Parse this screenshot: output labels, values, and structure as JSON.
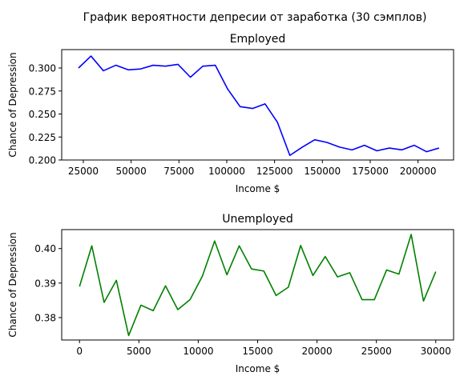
{
  "figure": {
    "suptitle": "График вероятности депресии от заработка (30 сэмплов)"
  },
  "colors": {
    "employed_line": "#0000ff",
    "unemployed_line": "#008000"
  },
  "chart_data": [
    {
      "type": "line",
      "title": "Employed",
      "xlabel": "Income $",
      "ylabel": "Chance of Depression",
      "xlim": [
        13700,
        218600
      ],
      "ylim": [
        0.2,
        0.32
      ],
      "xticks": [
        25000,
        50000,
        75000,
        100000,
        125000,
        150000,
        175000,
        200000
      ],
      "xtick_labels": [
        "25000",
        "50000",
        "75000",
        "100000",
        "125000",
        "150000",
        "175000",
        "200000"
      ],
      "yticks": [
        0.2,
        0.225,
        0.25,
        0.275,
        0.3
      ],
      "ytick_labels": [
        "0.200",
        "0.225",
        "0.250",
        "0.275",
        "0.300"
      ],
      "grid": false,
      "series": [
        {
          "color": "#0000ff",
          "x": [
            22500,
            29000,
            35500,
            42000,
            48500,
            55000,
            61500,
            68000,
            74500,
            81000,
            87500,
            94000,
            100500,
            107000,
            113500,
            120000,
            126500,
            133000,
            139500,
            146000,
            152500,
            159000,
            165500,
            172000,
            178500,
            185000,
            191500,
            198000,
            204500,
            211000
          ],
          "y": [
            0.3,
            0.313,
            0.297,
            0.303,
            0.298,
            0.299,
            0.303,
            0.302,
            0.304,
            0.29,
            0.302,
            0.303,
            0.277,
            0.258,
            0.256,
            0.261,
            0.241,
            0.205,
            0.214,
            0.222,
            0.219,
            0.214,
            0.211,
            0.216,
            0.21,
            0.213,
            0.211,
            0.216,
            0.209,
            0.213
          ]
        }
      ]
    },
    {
      "type": "line",
      "title": "Unemployed",
      "xlabel": "Income $",
      "ylabel": "Chance of Depression",
      "xlim": [
        -1500,
        31500
      ],
      "ylim": [
        0.3735,
        0.4055
      ],
      "xticks": [
        0,
        5000,
        10000,
        15000,
        20000,
        25000,
        30000
      ],
      "xtick_labels": [
        "0",
        "5000",
        "10000",
        "15000",
        "20000",
        "25000",
        "30000"
      ],
      "yticks": [
        0.38,
        0.39,
        0.4
      ],
      "ytick_labels": [
        "0.38",
        "0.39",
        "0.40"
      ],
      "grid": false,
      "series": [
        {
          "color": "#008000",
          "x": [
            0,
            1034,
            2069,
            3103,
            4138,
            5172,
            6207,
            7241,
            8276,
            9310,
            10345,
            11379,
            12414,
            13448,
            14483,
            15517,
            16552,
            17586,
            18621,
            19655,
            20690,
            21724,
            22759,
            23793,
            24828,
            25862,
            26897,
            27931,
            28966,
            30000
          ],
          "y": [
            0.389,
            0.4008,
            0.3844,
            0.3908,
            0.3748,
            0.3836,
            0.382,
            0.3892,
            0.3823,
            0.3852,
            0.392,
            0.4022,
            0.3924,
            0.4008,
            0.3941,
            0.3935,
            0.3864,
            0.3888,
            0.4009,
            0.3922,
            0.3977,
            0.3918,
            0.393,
            0.3852,
            0.3852,
            0.3938,
            0.3926,
            0.4041,
            0.3848,
            0.3933
          ]
        }
      ]
    }
  ]
}
